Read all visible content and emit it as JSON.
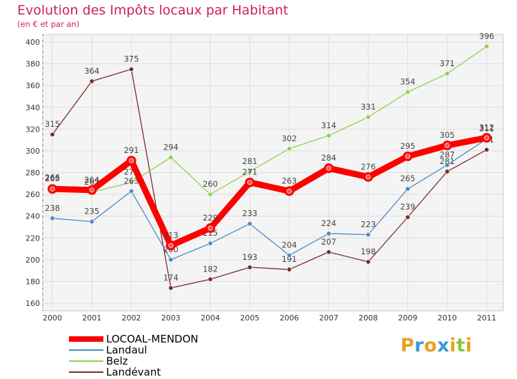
{
  "title": "Evolution des Impôts locaux par Habitant",
  "subtitle": "(en € et par an)",
  "logo_text": "Proxiti",
  "chart_data": {
    "type": "line",
    "title": "Evolution des Impôts locaux par Habitant",
    "subtitle": "(en € et par an)",
    "xlabel": "",
    "ylabel": "",
    "categories": [
      "2000",
      "2001",
      "2002",
      "2003",
      "2004",
      "2005",
      "2006",
      "2007",
      "2008",
      "2009",
      "2010",
      "2011"
    ],
    "ylim": [
      160,
      400
    ],
    "yticks": [
      160,
      180,
      200,
      220,
      240,
      260,
      280,
      300,
      320,
      340,
      360,
      380,
      400
    ],
    "grid": true,
    "legend_position": "bottom-left",
    "series": [
      {
        "name": "Landévant",
        "color": "#7a2a2a",
        "values": [
          315,
          364,
          375,
          174,
          182,
          193,
          191,
          207,
          198,
          239,
          281,
          301
        ]
      },
      {
        "name": "Belz",
        "color": "#8fd14f",
        "values": [
          266,
          262,
          271,
          294,
          260,
          281,
          302,
          314,
          331,
          354,
          371,
          396
        ]
      },
      {
        "name": "Landaul",
        "color": "#4a8ac4",
        "values": [
          238,
          235,
          263,
          200,
          215,
          233,
          204,
          224,
          223,
          265,
          287,
          311
        ]
      },
      {
        "name": "LOCOAL-MENDON",
        "color": "#ff0000",
        "values": [
          265,
          264,
          291,
          213,
          229,
          271,
          263,
          284,
          276,
          295,
          305,
          312
        ]
      }
    ]
  },
  "legend": [
    {
      "name": "LOCOAL-MENDON",
      "color": "#ff0000"
    },
    {
      "name": "Landaul",
      "color": "#4a8ac4"
    },
    {
      "name": "Belz",
      "color": "#8fd14f"
    },
    {
      "name": "Landévant",
      "color": "#7a2a2a"
    }
  ]
}
